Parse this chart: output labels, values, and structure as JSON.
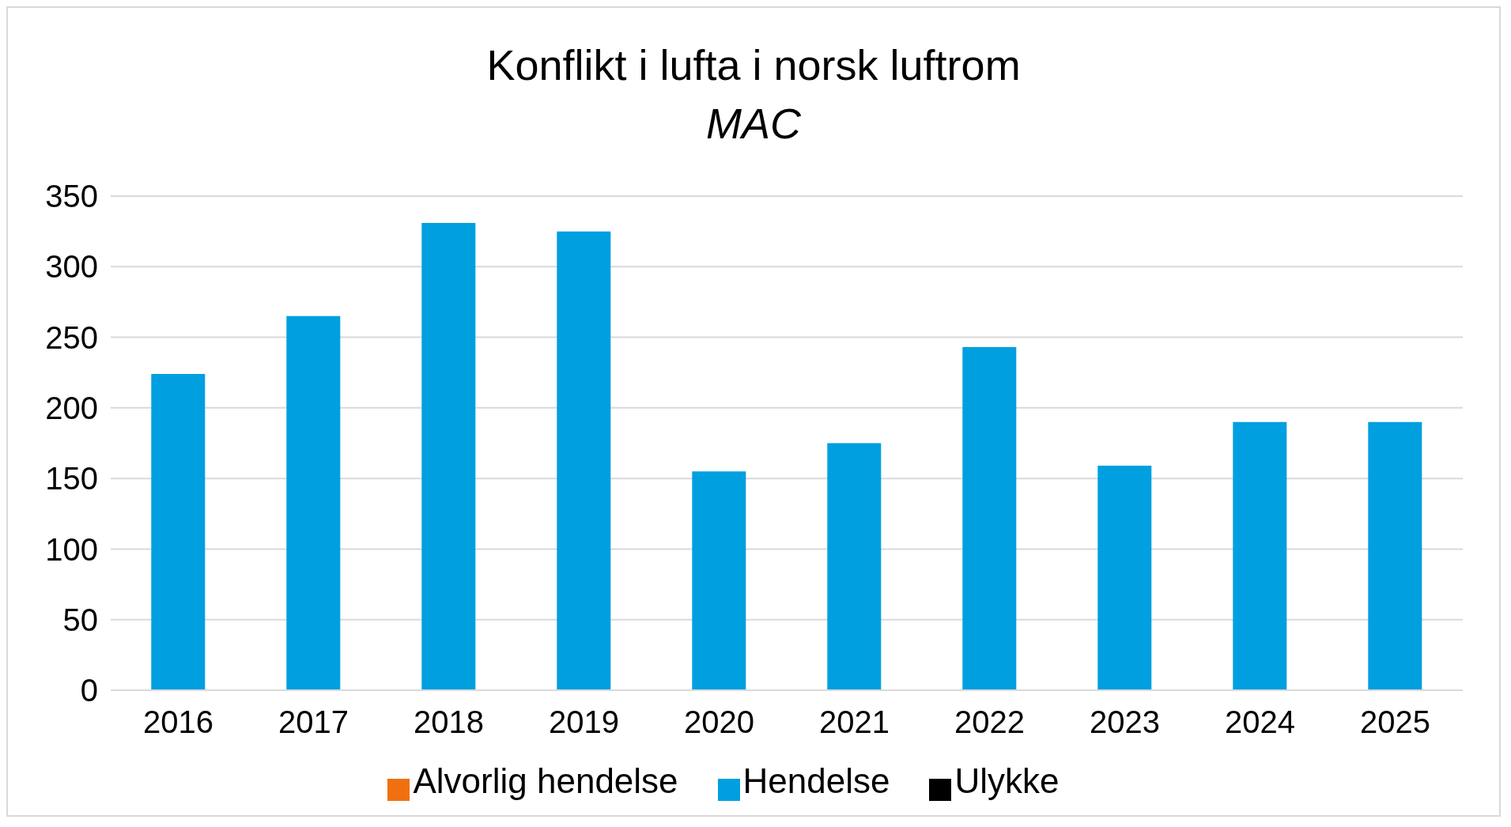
{
  "chart_data": {
    "type": "bar",
    "title": "Konflikt i  lufta i norsk luftrom",
    "subtitle": "MAC",
    "categories": [
      "2016",
      "2017",
      "2018",
      "2019",
      "2020",
      "2021",
      "2022",
      "2023",
      "2024",
      "2025"
    ],
    "stacked": true,
    "series": [
      {
        "name": "Ulykke",
        "color": "#000000",
        "values": [
          0,
          0,
          0,
          0,
          0,
          0,
          0,
          0,
          0,
          0
        ]
      },
      {
        "name": "Alvorlig hendelse",
        "color": "#f07010",
        "values": [
          0,
          0,
          0,
          0,
          0,
          0,
          0,
          0,
          0,
          0
        ]
      },
      {
        "name": "Hendelse",
        "color": "#009fe0",
        "values": [
          224,
          265,
          331,
          325,
          155,
          175,
          243,
          159,
          190,
          190
        ]
      }
    ],
    "ylim": [
      0,
      350
    ],
    "yticks": [
      0,
      50,
      100,
      150,
      200,
      250,
      300,
      350
    ],
    "grid": "y",
    "legend": "bottom"
  }
}
